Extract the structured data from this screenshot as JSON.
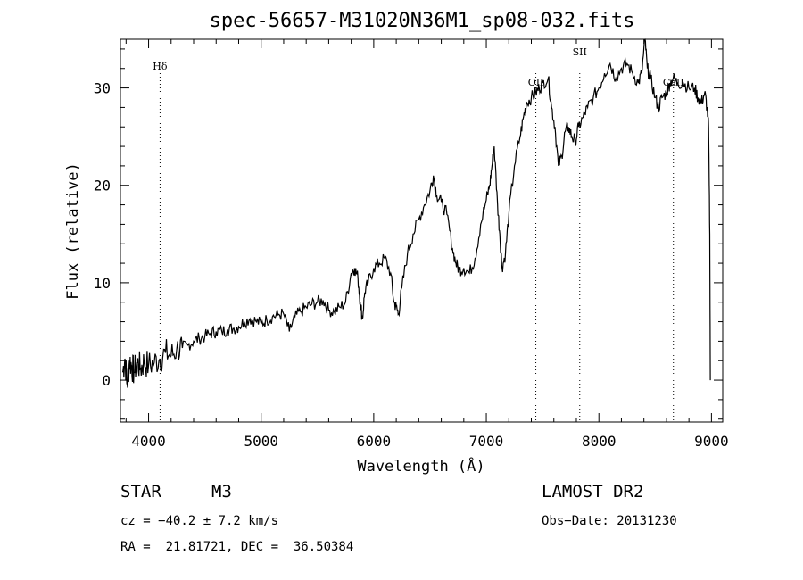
{
  "chart_data": {
    "type": "line",
    "title": "spec-56657-M31020N36M1_sp08-032.fits",
    "xlabel": "Wavelength (Å)",
    "ylabel": "Flux (relative)",
    "xlim": [
      3750,
      9100
    ],
    "ylim": [
      -4.3,
      35
    ],
    "xticks": [
      4000,
      5000,
      6000,
      7000,
      8000,
      9000
    ],
    "yticks": [
      0,
      10,
      20,
      30
    ],
    "grid": false,
    "legend": "none",
    "line_color": "#000000",
    "line_markers": [
      {
        "label": "Hδ",
        "x": 4102
      },
      {
        "label": "OII",
        "x": 7440
      },
      {
        "label": "SII",
        "x": 7830
      },
      {
        "label": "CaII",
        "x": 8662
      }
    ],
    "series": [
      {
        "values_xy": [
          [
            3770,
            0.8
          ],
          [
            3790,
            2.2
          ],
          [
            3810,
            -0.5
          ],
          [
            3830,
            2.0
          ],
          [
            3850,
            1.5
          ],
          [
            3870,
            0.8
          ],
          [
            3900,
            1.8
          ],
          [
            3930,
            1.2
          ],
          [
            3960,
            1.9
          ],
          [
            4000,
            1.5
          ],
          [
            4050,
            1.8
          ],
          [
            4100,
            2.2
          ],
          [
            4150,
            2.8
          ],
          [
            4200,
            2.5
          ],
          [
            4250,
            3.2
          ],
          [
            4300,
            3.3
          ],
          [
            4350,
            3.6
          ],
          [
            4400,
            4.0
          ],
          [
            4450,
            4.3
          ],
          [
            4500,
            4.5
          ],
          [
            4550,
            4.8
          ],
          [
            4600,
            5.0
          ],
          [
            4650,
            5.0
          ],
          [
            4700,
            5.2
          ],
          [
            4750,
            5.3
          ],
          [
            4800,
            5.5
          ],
          [
            4850,
            6.0
          ],
          [
            4900,
            6.3
          ],
          [
            4950,
            6.1
          ],
          [
            5000,
            5.8
          ],
          [
            5050,
            6.2
          ],
          [
            5100,
            6.5
          ],
          [
            5150,
            6.7
          ],
          [
            5200,
            6.8
          ],
          [
            5250,
            5.0
          ],
          [
            5300,
            6.5
          ],
          [
            5350,
            7.0
          ],
          [
            5400,
            7.5
          ],
          [
            5450,
            7.8
          ],
          [
            5500,
            8.0
          ],
          [
            5550,
            8.2
          ],
          [
            5600,
            7.2
          ],
          [
            5650,
            7.0
          ],
          [
            5700,
            7.5
          ],
          [
            5750,
            8.0
          ],
          [
            5800,
            11.0
          ],
          [
            5830,
            11.5
          ],
          [
            5860,
            10.5
          ],
          [
            5880,
            8.0
          ],
          [
            5900,
            6.3
          ],
          [
            5920,
            9.0
          ],
          [
            5950,
            10.0
          ],
          [
            6000,
            11.5
          ],
          [
            6050,
            12.0
          ],
          [
            6100,
            12.5
          ],
          [
            6150,
            11.0
          ],
          [
            6180,
            8.0
          ],
          [
            6200,
            7.5
          ],
          [
            6220,
            6.8
          ],
          [
            6250,
            9.5
          ],
          [
            6300,
            13.0
          ],
          [
            6350,
            15.0
          ],
          [
            6400,
            16.5
          ],
          [
            6450,
            18.0
          ],
          [
            6500,
            19.5
          ],
          [
            6530,
            21.0
          ],
          [
            6560,
            19.0
          ],
          [
            6600,
            18.3
          ],
          [
            6650,
            17.0
          ],
          [
            6700,
            13.5
          ],
          [
            6730,
            12.0
          ],
          [
            6760,
            11.3
          ],
          [
            6800,
            11.5
          ],
          [
            6850,
            11.0
          ],
          [
            6900,
            12.5
          ],
          [
            6950,
            16.0
          ],
          [
            7000,
            18.5
          ],
          [
            7030,
            20.0
          ],
          [
            7050,
            22.0
          ],
          [
            7070,
            24.0
          ],
          [
            7100,
            18.0
          ],
          [
            7120,
            15.0
          ],
          [
            7140,
            11.5
          ],
          [
            7170,
            13.0
          ],
          [
            7200,
            17.0
          ],
          [
            7250,
            22.0
          ],
          [
            7300,
            25.0
          ],
          [
            7330,
            27.0
          ],
          [
            7360,
            28.5
          ],
          [
            7400,
            29.0
          ],
          [
            7440,
            29.5
          ],
          [
            7470,
            30.0
          ],
          [
            7500,
            30.5
          ],
          [
            7550,
            31.0
          ],
          [
            7580,
            28.0
          ],
          [
            7610,
            26.0
          ],
          [
            7640,
            22.0
          ],
          [
            7670,
            23.0
          ],
          [
            7700,
            25.5
          ],
          [
            7730,
            26.0
          ],
          [
            7760,
            25.0
          ],
          [
            7790,
            24.5
          ],
          [
            7820,
            26.0
          ],
          [
            7860,
            27.0
          ],
          [
            7900,
            28.0
          ],
          [
            7950,
            29.0
          ],
          [
            8000,
            30.0
          ],
          [
            8050,
            31.5
          ],
          [
            8100,
            32.5
          ],
          [
            8150,
            31.0
          ],
          [
            8200,
            32.0
          ],
          [
            8250,
            32.5
          ],
          [
            8300,
            31.5
          ],
          [
            8350,
            30.5
          ],
          [
            8380,
            31.5
          ],
          [
            8410,
            35.0
          ],
          [
            8430,
            32.0
          ],
          [
            8460,
            31.0
          ],
          [
            8500,
            29.0
          ],
          [
            8530,
            28.0
          ],
          [
            8560,
            29.0
          ],
          [
            8600,
            29.5
          ],
          [
            8630,
            30.5
          ],
          [
            8660,
            31.0
          ],
          [
            8700,
            30.5
          ],
          [
            8750,
            30.5
          ],
          [
            8800,
            30.0
          ],
          [
            8850,
            30.0
          ],
          [
            8880,
            29.0
          ],
          [
            8910,
            28.5
          ],
          [
            8940,
            29.5
          ],
          [
            8960,
            28.0
          ],
          [
            8975,
            26.0
          ],
          [
            8985,
            15.0
          ],
          [
            8990,
            0.0
          ]
        ]
      }
    ]
  },
  "info": {
    "object_class": "STAR",
    "subclass": "M3",
    "survey": "LAMOST DR2",
    "cz": "cz = −40.2 ± 7.2 km/s",
    "obs_date": "Obs−Date: 20131230",
    "coords": "RA =  21.81721, DEC =  36.50384"
  }
}
